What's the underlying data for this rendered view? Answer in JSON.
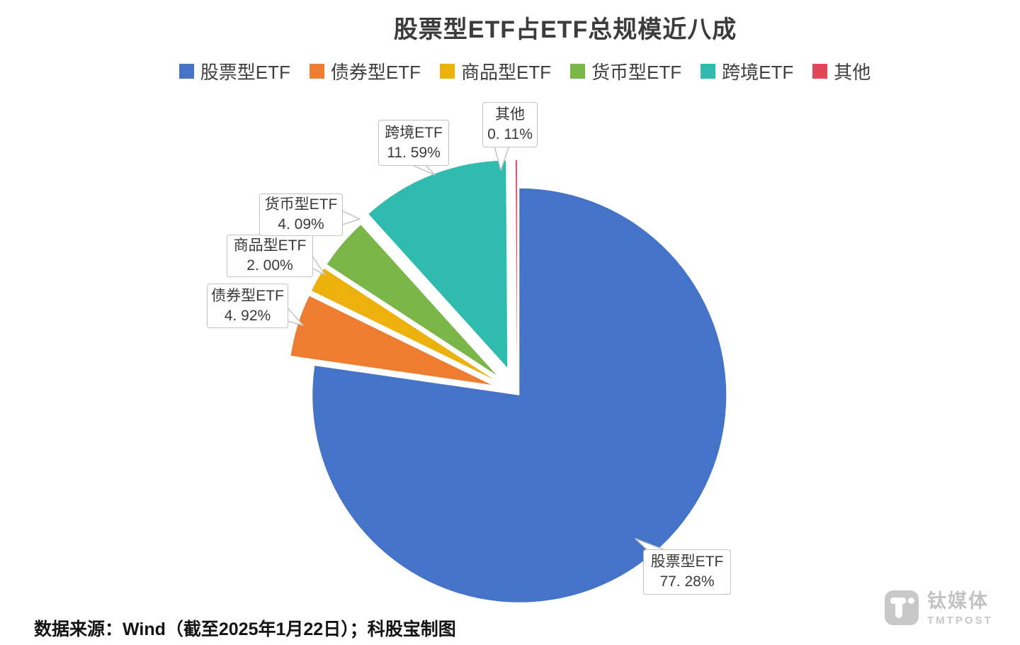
{
  "title": "股票型ETF占ETF总规模近八成",
  "chart_data": {
    "type": "pie",
    "title": "股票型ETF占ETF总规模近八成",
    "legend_position": "top",
    "direction": "clockwise",
    "start_angle": "12-oclock",
    "series": [
      {
        "name": "股票型ETF",
        "value": 77.28,
        "percent_label": "77. 28%",
        "color": "#4573C7"
      },
      {
        "name": "债券型ETF",
        "value": 4.92,
        "percent_label": "4. 92%",
        "color": "#EE7D31"
      },
      {
        "name": "商品型ETF",
        "value": 2.0,
        "percent_label": "2. 00%",
        "color": "#EDB10E"
      },
      {
        "name": "货币型ETF",
        "value": 4.09,
        "percent_label": "4. 09%",
        "color": "#7AB648"
      },
      {
        "name": "跨境ETF",
        "value": 11.59,
        "percent_label": "11. 59%",
        "color": "#2FBBAD"
      },
      {
        "name": "其他",
        "value": 0.11,
        "percent_label": "0. 11%",
        "color": "#E0485A"
      }
    ]
  },
  "footer": {
    "source_text": "数据来源：Wind（截至2025年1月22日）；科股宝制图"
  },
  "watermark": {
    "brand_cn": "钛媒体",
    "brand_en": "TMTPOST"
  }
}
